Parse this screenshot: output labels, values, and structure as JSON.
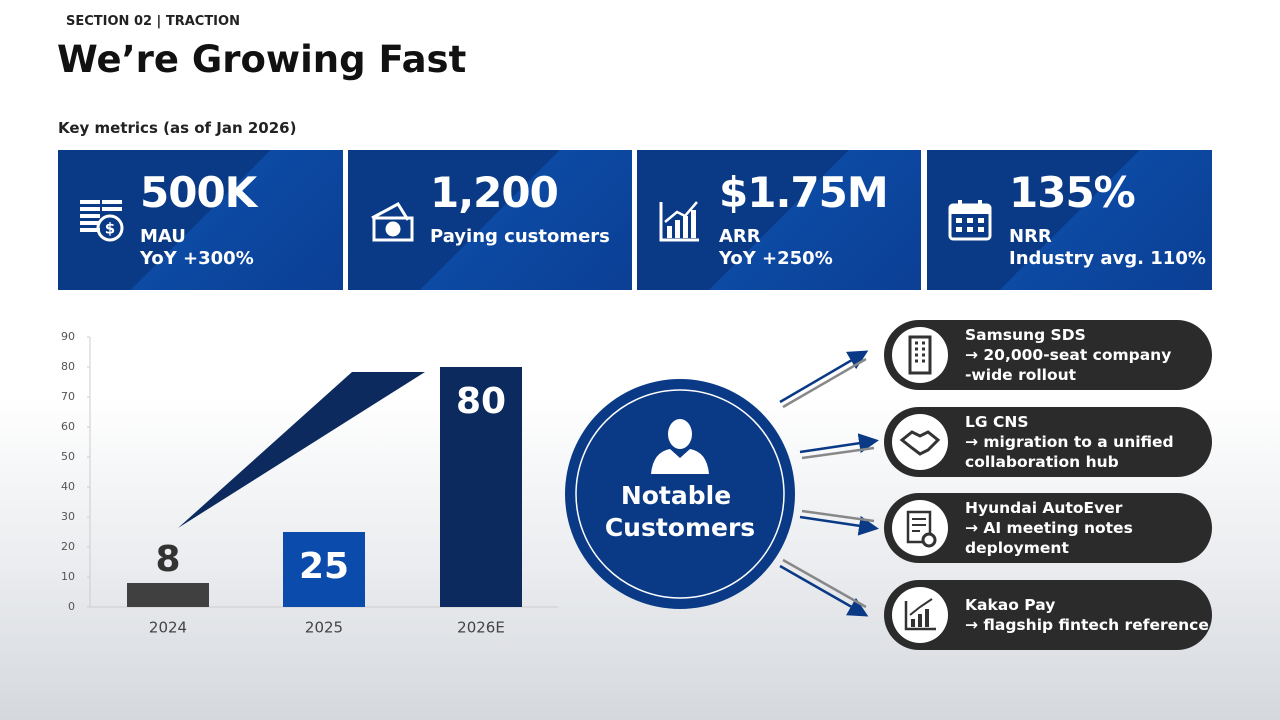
{
  "header": {
    "section": "SECTION 02 | TRACTION",
    "title": "We’re Growing Fast",
    "subtitle": "Key metrics (as of Jan 2026)"
  },
  "metrics": [
    {
      "value": "500K",
      "lines": [
        "MAU",
        "YoY +300%"
      ]
    },
    {
      "value": "1,200",
      "lines": [
        "Paying customers"
      ]
    },
    {
      "value": "$1.75M",
      "lines": [
        "ARR",
        "YoY +250%"
      ]
    },
    {
      "value": "135%",
      "lines": [
        "NRR",
        "Industry avg. 110%"
      ]
    }
  ],
  "chart_data": {
    "type": "bar",
    "categories": [
      "2024",
      "2025",
      "2026E"
    ],
    "values": [
      8,
      25,
      80
    ],
    "colors": [
      "#404040",
      "#0a4bab",
      "#0c2a5e"
    ],
    "ylim": [
      0,
      90
    ],
    "yticks": [
      0,
      10,
      20,
      30,
      40,
      50,
      60,
      70,
      80,
      90
    ]
  },
  "customers": {
    "center": [
      "Notable",
      "Customers"
    ],
    "items": [
      {
        "name": "Samsung SDS",
        "lines": [
          "→ 20,000-seat  company",
          "-wide rollout"
        ]
      },
      {
        "name": "LG CNS",
        "lines": [
          "→ migration to a unified",
          "collaboration hub"
        ]
      },
      {
        "name": "Hyundai AutoEver",
        "lines": [
          "→ AI meeting notes",
          "deployment"
        ]
      },
      {
        "name": "Kakao Pay",
        "lines": [
          "→ flagship fintech reference"
        ]
      }
    ]
  }
}
